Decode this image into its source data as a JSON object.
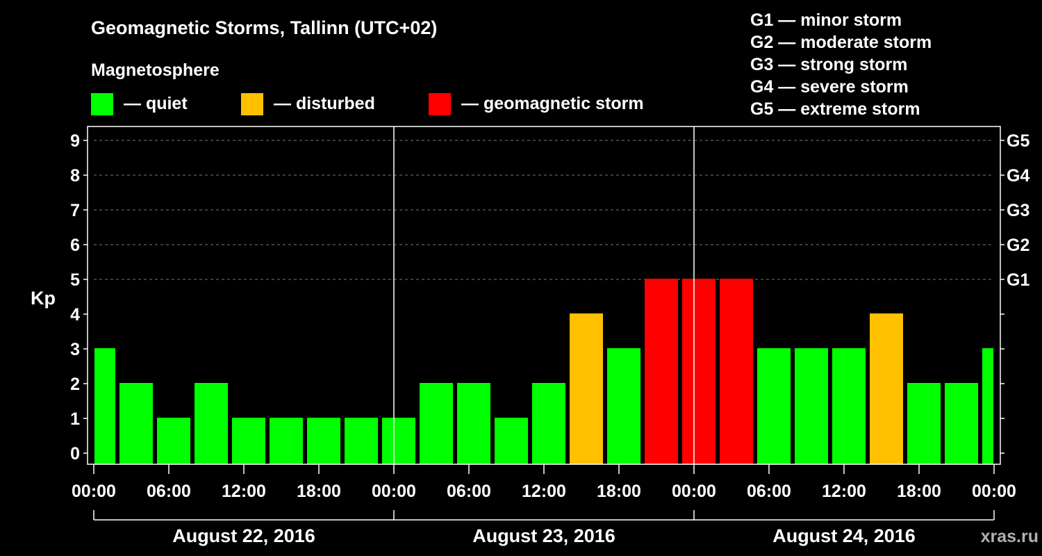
{
  "title": "Geomagnetic Storms, Tallinn (UTC+02)",
  "legend": {
    "heading": "Magnetosphere",
    "items": [
      {
        "label": "— quiet",
        "color": "#00ff00"
      },
      {
        "label": "— disturbed",
        "color": "#ffc000"
      },
      {
        "label": "— geomagnetic storm",
        "color": "#ff0000"
      }
    ]
  },
  "storm_scale": [
    "G1 — minor storm",
    "G2 — moderate storm",
    "G3 — strong storm",
    "G4 — severe storm",
    "G5 — extreme storm"
  ],
  "watermark": "xras.ru",
  "chart_data": {
    "type": "bar",
    "ylabel": "Kp",
    "ylim": [
      0,
      9
    ],
    "yticks": [
      0,
      1,
      2,
      3,
      4,
      5,
      6,
      7,
      8,
      9
    ],
    "right_labels": [
      {
        "y": 5,
        "label": "G1"
      },
      {
        "y": 6,
        "label": "G2"
      },
      {
        "y": 7,
        "label": "G3"
      },
      {
        "y": 8,
        "label": "G4"
      },
      {
        "y": 9,
        "label": "G5"
      }
    ],
    "x_tick_labels": [
      "00:00",
      "06:00",
      "12:00",
      "18:00",
      "00:00",
      "06:00",
      "12:00",
      "18:00",
      "00:00",
      "06:00",
      "12:00",
      "18:00",
      "00:00"
    ],
    "days": [
      "August 22, 2016",
      "August 23, 2016",
      "August 24, 2016"
    ],
    "bar_interval_hours": 3,
    "values": [
      3,
      2,
      1,
      2,
      1,
      1,
      1,
      1,
      1,
      2,
      2,
      1,
      2,
      4,
      3,
      5,
      5,
      5,
      3,
      3,
      3,
      4,
      2,
      2,
      3
    ],
    "color_thresholds": {
      "quiet_max": 3,
      "disturbed": 4,
      "storm_min": 5
    },
    "grid": "dashed at y = 5..9"
  }
}
